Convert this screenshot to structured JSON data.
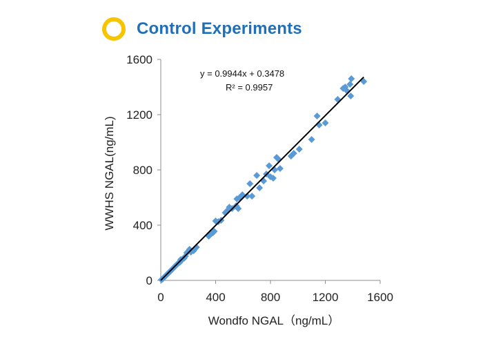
{
  "header": {
    "title": "Control Experiments",
    "ring_color": "#f7c400",
    "title_color": "#1f6fba"
  },
  "chart_data": {
    "type": "scatter",
    "title": "",
    "xlabel": "Wondfo NGAL（ng/mL）",
    "ylabel": "WWHS NGAL(ng/mL)",
    "xlim": [
      0,
      1600
    ],
    "ylim": [
      0,
      1600
    ],
    "xticks": [
      "0",
      "400",
      "800",
      "1200",
      "1600"
    ],
    "yticks": [
      "0",
      "400",
      "800",
      "1200",
      "1600"
    ],
    "grid": false,
    "marker_color": "#5b9bd5",
    "trendline": {
      "slope": 0.9944,
      "intercept": 0.3478,
      "x_range": [
        0,
        1480
      ],
      "color": "#000000"
    },
    "equation": "y = 0.9944x + 0.3478",
    "r_squared": "R² = 0.9957",
    "series": [
      {
        "points": [
          [
            5,
            5
          ],
          [
            10,
            8
          ],
          [
            15,
            12
          ],
          [
            20,
            18
          ],
          [
            25,
            22
          ],
          [
            30,
            28
          ],
          [
            35,
            32
          ],
          [
            40,
            38
          ],
          [
            45,
            42
          ],
          [
            50,
            48
          ],
          [
            55,
            52
          ],
          [
            60,
            58
          ],
          [
            65,
            62
          ],
          [
            70,
            66
          ],
          [
            75,
            72
          ],
          [
            80,
            78
          ],
          [
            85,
            82
          ],
          [
            90,
            86
          ],
          [
            95,
            92
          ],
          [
            100,
            98
          ],
          [
            105,
            102
          ],
          [
            110,
            108
          ],
          [
            115,
            112
          ],
          [
            120,
            118
          ],
          [
            125,
            122
          ],
          [
            130,
            126
          ],
          [
            140,
            132
          ],
          [
            145,
            150
          ],
          [
            150,
            145
          ],
          [
            155,
            152
          ],
          [
            170,
            160
          ],
          [
            180,
            175
          ],
          [
            190,
            200
          ],
          [
            200,
            210
          ],
          [
            210,
            225
          ],
          [
            220,
            205
          ],
          [
            240,
            215
          ],
          [
            250,
            230
          ],
          [
            260,
            240
          ],
          [
            350,
            320
          ],
          [
            360,
            335
          ],
          [
            370,
            340
          ],
          [
            380,
            345
          ],
          [
            390,
            355
          ],
          [
            400,
            430
          ],
          [
            420,
            425
          ],
          [
            440,
            435
          ],
          [
            470,
            490
          ],
          [
            490,
            510
          ],
          [
            500,
            530
          ],
          [
            520,
            520
          ],
          [
            550,
            540
          ],
          [
            555,
            590
          ],
          [
            565,
            520
          ],
          [
            575,
            600
          ],
          [
            595,
            620
          ],
          [
            630,
            610
          ],
          [
            650,
            700
          ],
          [
            665,
            610
          ],
          [
            700,
            760
          ],
          [
            720,
            670
          ],
          [
            750,
            720
          ],
          [
            770,
            770
          ],
          [
            790,
            830
          ],
          [
            800,
            750
          ],
          [
            820,
            740
          ],
          [
            830,
            800
          ],
          [
            845,
            890
          ],
          [
            855,
            880
          ],
          [
            870,
            810
          ],
          [
            950,
            900
          ],
          [
            970,
            920
          ],
          [
            1010,
            950
          ],
          [
            1100,
            1020
          ],
          [
            1140,
            1190
          ],
          [
            1155,
            1125
          ],
          [
            1200,
            1140
          ],
          [
            1290,
            1310
          ],
          [
            1330,
            1390
          ],
          [
            1345,
            1400
          ],
          [
            1360,
            1370
          ],
          [
            1380,
            1420
          ],
          [
            1385,
            1335
          ],
          [
            1390,
            1460
          ],
          [
            1480,
            1440
          ]
        ]
      }
    ]
  }
}
